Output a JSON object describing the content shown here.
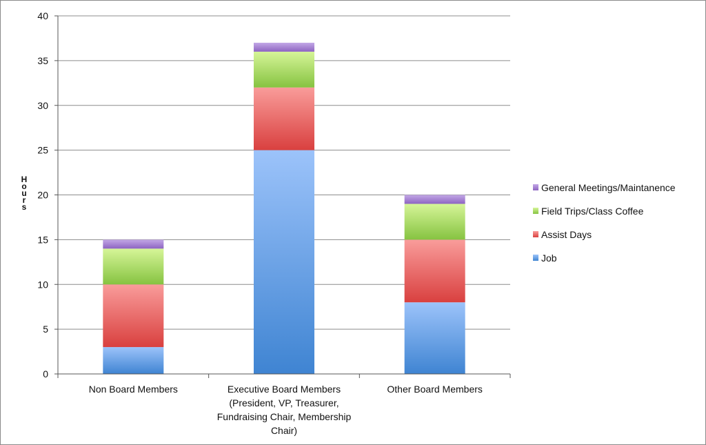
{
  "chart_data": {
    "type": "bar",
    "stacked": true,
    "ylabel": "Hours",
    "ylim": [
      0,
      40
    ],
    "yticks": [
      0,
      5,
      10,
      15,
      20,
      25,
      30,
      35,
      40
    ],
    "grid": true,
    "legend_position": "right",
    "categories": [
      [
        "Non Board Members"
      ],
      [
        "Executive Board Members",
        "(President, VP, Treasurer,",
        "Fundraising Chair, Membership",
        "Chair)"
      ],
      [
        "Other Board Members"
      ]
    ],
    "series": [
      {
        "name": "Job",
        "values": [
          3,
          25,
          8
        ],
        "color_top": "#9cc3fa",
        "color_bottom": "#3f84d2"
      },
      {
        "name": "Assist Days",
        "values": [
          7,
          7,
          7
        ],
        "color_top": "#f99c9a",
        "color_bottom": "#d9403f"
      },
      {
        "name": "Field Trips/Class Coffee",
        "values": [
          4,
          4,
          4
        ],
        "color_top": "#d6f598",
        "color_bottom": "#86c341"
      },
      {
        "name": "General Meetings/Maintanence",
        "values": [
          1,
          1,
          1
        ],
        "color_top": "#c3a8e6",
        "color_bottom": "#8d64c1"
      }
    ]
  }
}
